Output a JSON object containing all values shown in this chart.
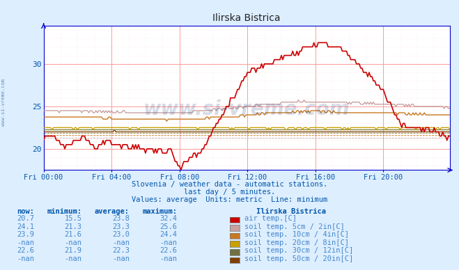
{
  "title": "Ilirska Bistrica",
  "bg_color": "#ddeeff",
  "plot_bg_color": "#ffffff",
  "grid_color_major": "#ff9999",
  "grid_color_minor": "#ffdddd",
  "axis_color": "#0000cc",
  "label_color": "#0055aa",
  "xlabels": [
    "Fri 00:00",
    "Fri 04:00",
    "Fri 08:00",
    "Fri 12:00",
    "Fri 16:00",
    "Fri 20:00"
  ],
  "xtick_positions": [
    0,
    48,
    96,
    144,
    192,
    240
  ],
  "ylim": [
    17.5,
    34.5
  ],
  "yticks": [
    20,
    25,
    30
  ],
  "total_points": 288,
  "subtitle1": "Slovenia / weather data - automatic stations.",
  "subtitle2": "last day / 5 minutes.",
  "subtitle3": "Values: average  Units: metric  Line: minimum",
  "series_colors": [
    "#cc0000",
    "#c8a0a0",
    "#c87820",
    "#c8a000",
    "#808040",
    "#804000"
  ],
  "legend_colors": [
    "#cc0000",
    "#c8a0a0",
    "#c87820",
    "#c8a000",
    "#707040",
    "#804000"
  ],
  "series_names": [
    "air temp.[C]",
    "soil temp. 5cm / 2in[C]",
    "soil temp. 10cm / 4in[C]",
    "soil temp. 20cm / 8in[C]",
    "soil temp. 30cm / 12in[C]",
    "soil temp. 50cm / 20in[C]"
  ],
  "table_headers": [
    "now:",
    "minimum:",
    "average:",
    "maximum:",
    "Ilirska Bistrica"
  ],
  "table_data": [
    [
      "20.7",
      "15.5",
      "23.8",
      "32.4"
    ],
    [
      "24.1",
      "21.3",
      "23.3",
      "25.6"
    ],
    [
      "23.9",
      "21.6",
      "23.0",
      "24.4"
    ],
    [
      "-nan",
      "-nan",
      "-nan",
      "-nan"
    ],
    [
      "22.6",
      "21.9",
      "22.3",
      "22.6"
    ],
    [
      "-nan",
      "-nan",
      "-nan",
      "-nan"
    ]
  ],
  "watermark": "www.si-vreme.com",
  "ylabel_side": "www.si-vreme.com",
  "min_lines": [
    15.5,
    21.3,
    21.6,
    -999,
    21.9,
    -999
  ],
  "min_line_colors": [
    "#cc0000",
    "#c8a0a0",
    "#c87820",
    "#c8a000",
    "#808040",
    "#804000"
  ]
}
